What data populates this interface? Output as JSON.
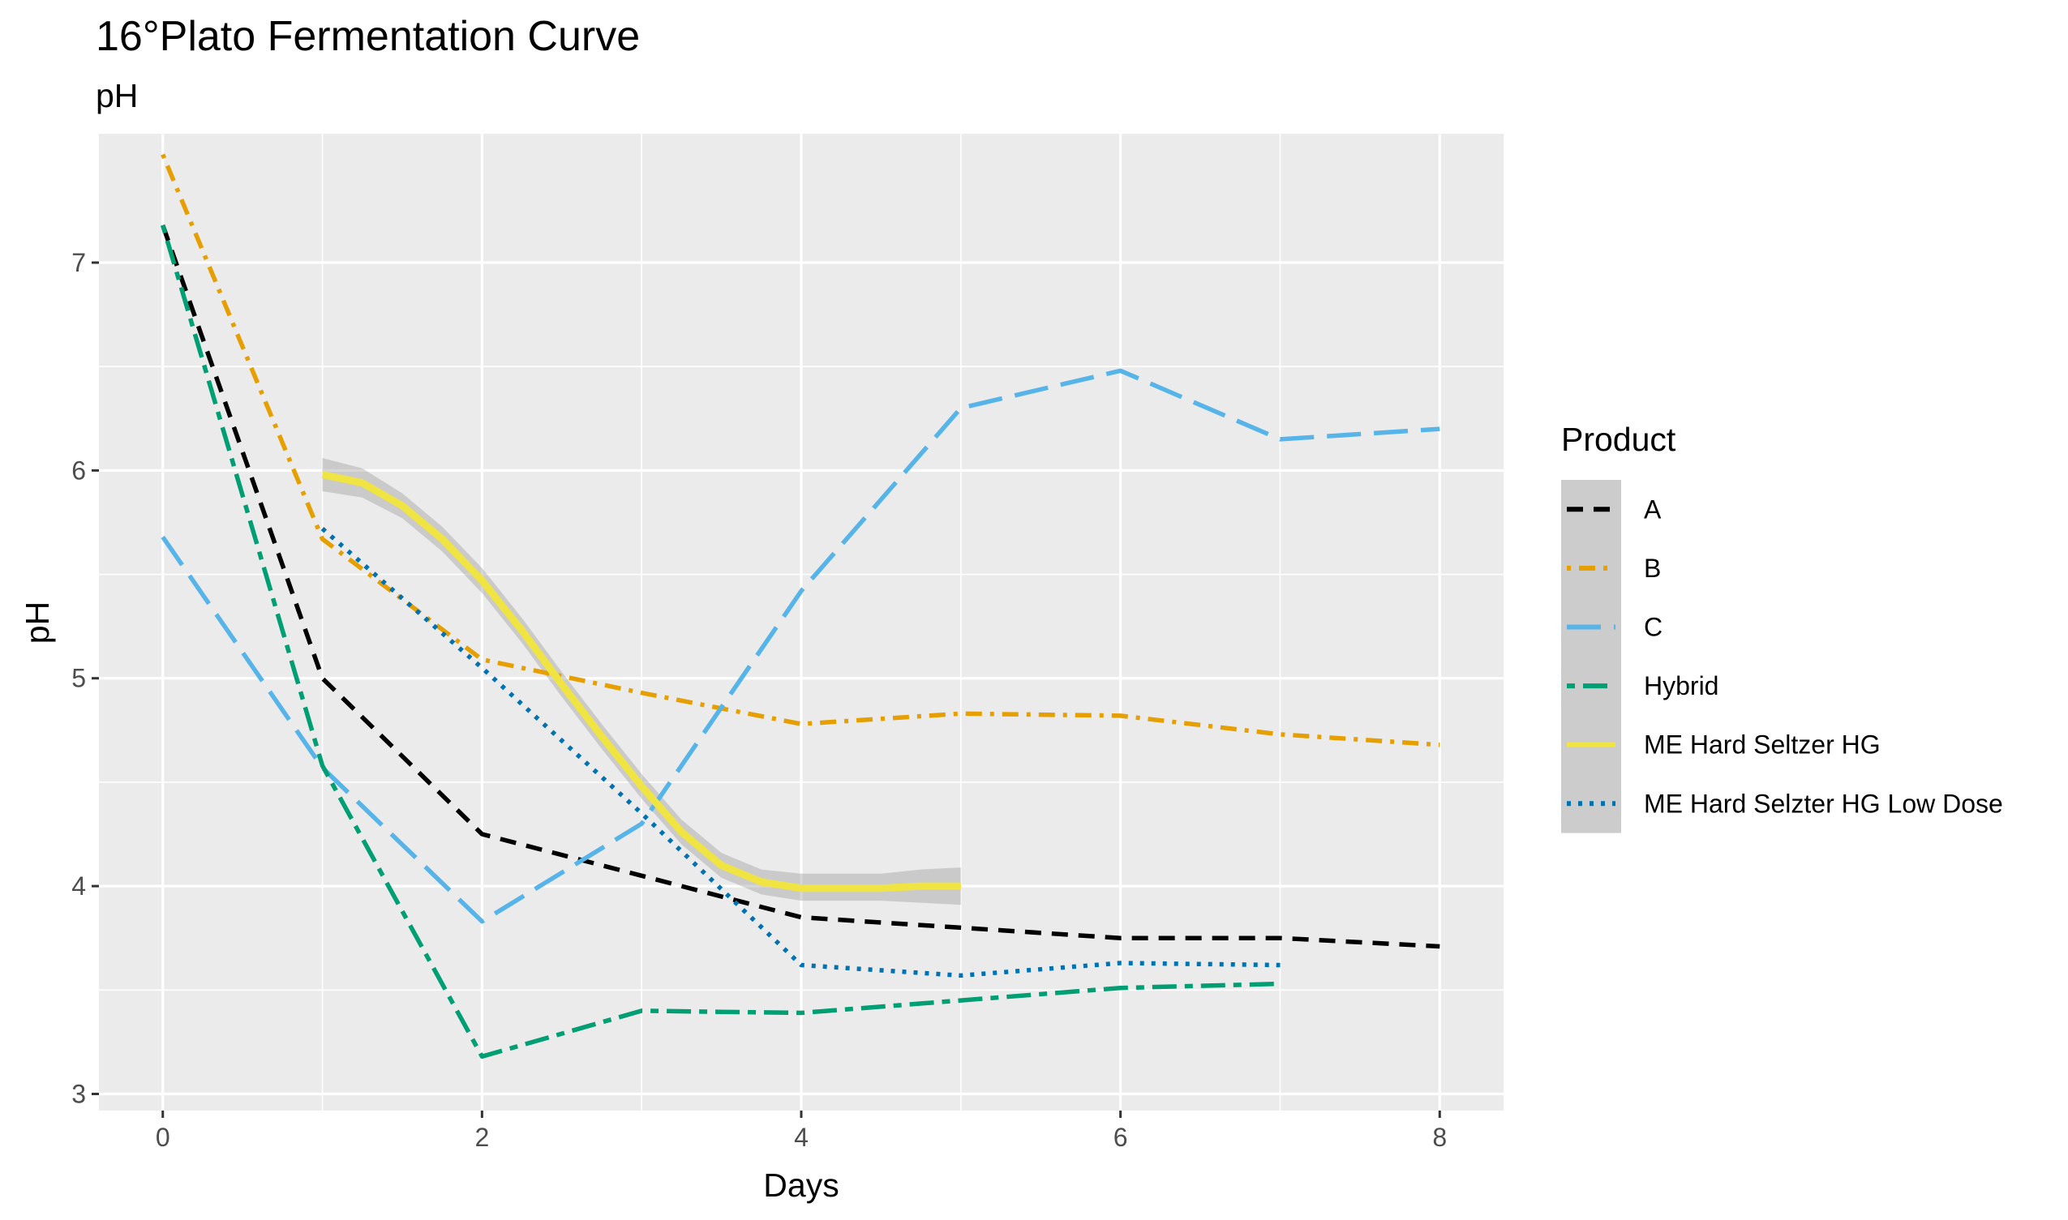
{
  "chart_data": {
    "type": "line",
    "title": "16°Plato Fermentation Curve",
    "subtitle": "pH",
    "xlabel": "Days",
    "ylabel": "pH",
    "xlim": [
      -0.4,
      8.4
    ],
    "ylim": [
      2.92,
      7.62
    ],
    "x_ticks": [
      0,
      2,
      4,
      6,
      8
    ],
    "y_ticks": [
      3,
      4,
      5,
      6,
      7
    ],
    "grid": true,
    "legend_title": "Product",
    "legend_position": "right",
    "series": [
      {
        "name": "A",
        "color": "#000000",
        "dash": "dashed",
        "x": [
          0,
          1,
          2,
          3,
          4,
          5,
          6,
          7,
          8
        ],
        "y": [
          7.18,
          5.0,
          4.25,
          4.05,
          3.85,
          3.8,
          3.75,
          3.75,
          3.71
        ]
      },
      {
        "name": "B",
        "color": "#E69F00",
        "dash": "dotdash",
        "x": [
          0,
          1,
          2,
          3,
          4,
          5,
          6,
          7,
          8
        ],
        "y": [
          7.52,
          5.67,
          5.09,
          4.93,
          4.78,
          4.83,
          4.82,
          4.73,
          4.68
        ]
      },
      {
        "name": "C",
        "color": "#56B4E9",
        "dash": "longdash",
        "x": [
          0,
          1,
          2,
          3,
          4,
          5,
          6,
          7,
          8
        ],
        "y": [
          5.68,
          4.57,
          3.83,
          4.3,
          5.42,
          6.3,
          6.48,
          6.15,
          6.2
        ]
      },
      {
        "name": "Hybrid",
        "color": "#009E73",
        "dash": "twodash",
        "x": [
          0,
          1,
          2,
          3,
          4,
          5,
          6,
          7
        ],
        "y": [
          7.18,
          4.58,
          3.18,
          3.4,
          3.39,
          3.45,
          3.51,
          3.53
        ]
      },
      {
        "name": "ME Hard Seltzer HG",
        "color": "#F0E442",
        "dash": "solid",
        "smooth": true,
        "x": [
          1,
          1.25,
          1.5,
          1.75,
          2,
          2.25,
          2.5,
          2.75,
          3,
          3.25,
          3.5,
          3.75,
          4,
          4.25,
          4.5,
          4.75,
          5
        ],
        "y": [
          5.98,
          5.94,
          5.83,
          5.67,
          5.47,
          5.23,
          4.97,
          4.72,
          4.48,
          4.26,
          4.1,
          4.02,
          3.99,
          3.99,
          3.99,
          4.0,
          4.0
        ],
        "ci_lower": [
          5.9,
          5.87,
          5.77,
          5.61,
          5.41,
          5.17,
          4.91,
          4.66,
          4.42,
          4.2,
          4.04,
          3.96,
          3.93,
          3.93,
          3.93,
          3.92,
          3.91
        ],
        "ci_upper": [
          6.06,
          6.01,
          5.89,
          5.73,
          5.53,
          5.29,
          5.03,
          4.78,
          4.54,
          4.32,
          4.16,
          4.08,
          4.06,
          4.06,
          4.06,
          4.08,
          4.09
        ]
      },
      {
        "name": "ME Hard Selzter HG Low Dose",
        "color": "#0072B2",
        "dash": "dotted",
        "x": [
          1,
          2,
          3,
          4,
          5,
          6,
          7
        ],
        "y": [
          5.72,
          5.05,
          4.35,
          3.62,
          3.57,
          3.63,
          3.62
        ]
      }
    ]
  }
}
